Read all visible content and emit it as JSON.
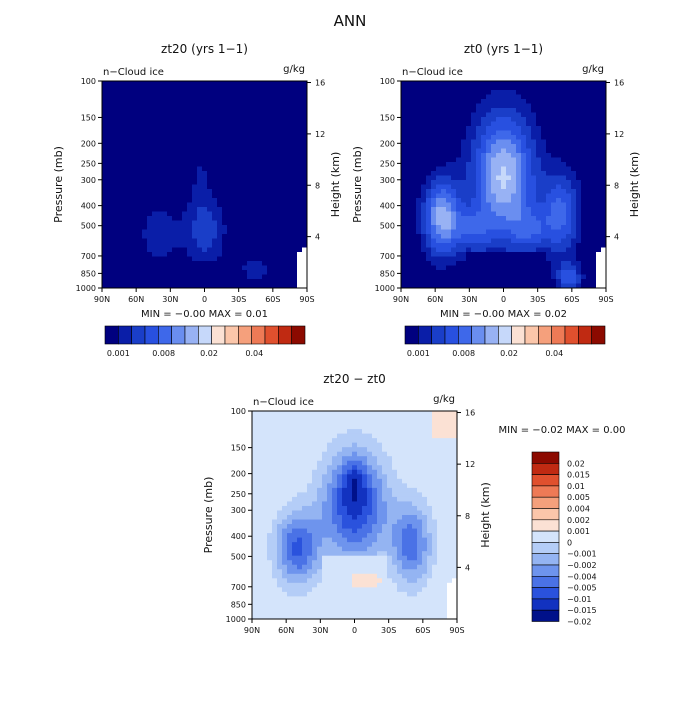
{
  "main_title": "ANN",
  "cbar_ticks": [
    "0.001",
    "0.008",
    "0.02",
    "0.04"
  ],
  "diff_legend_labels": [
    "0.02",
    "0.015",
    "0.01",
    "0.005",
    "0.004",
    "0.002",
    "0.001",
    "0",
    "−0.001",
    "−0.002",
    "−0.004",
    "−0.005",
    "−0.01",
    "−0.015",
    "−0.02"
  ],
  "colors": {
    "seq": [
      "#00007f",
      "#0a1ea8",
      "#1a3ec8",
      "#2850e0",
      "#3e68ea",
      "#6a8ef0",
      "#98b2f4",
      "#c6d8fa",
      "#fbe1d4",
      "#fbc6aa",
      "#f5a07c",
      "#ee7a56",
      "#e0502e",
      "#c02a12",
      "#8c0a00"
    ],
    "diff": [
      "#8c0a00",
      "#c02a12",
      "#e0502e",
      "#ee7a56",
      "#f5a07c",
      "#fbc6aa",
      "#fbe1d4",
      "#d4e4fb",
      "#b4cdf7",
      "#94b4f2",
      "#6e94ed",
      "#4a72e6",
      "#2a52dd",
      "#1232c0",
      "#00118a"
    ]
  },
  "chart_data": [
    {
      "type": "heatmap",
      "title": "zt20 (yrs 1−1)",
      "field_label": "n−Cloud ice",
      "units": "g/kg",
      "xlabel": "",
      "ylabel": "Pressure (mb)",
      "ylabel_right": "Height (km)",
      "x_ticks": [
        "90N",
        "60N",
        "30N",
        "0",
        "30S",
        "60S",
        "90S"
      ],
      "y_ticks": [
        "100",
        "150",
        "200",
        "250",
        "300",
        "400",
        "500",
        "700",
        "850",
        "1000"
      ],
      "y_right_ticks": [
        "16",
        "12",
        "8",
        "4"
      ],
      "stats": "MIN =  −0.00    MAX =   0.01",
      "min": -0.0,
      "max": 0.01,
      "legend": "colorbar-bottom",
      "colorbar_ticks": [
        "0.001",
        "0.008",
        "0.02",
        "0.04"
      ]
    },
    {
      "type": "heatmap",
      "title": "zt0 (yrs 1−1)",
      "field_label": "n−Cloud ice",
      "units": "g/kg",
      "xlabel": "",
      "ylabel": "Pressure (mb)",
      "ylabel_right": "Height (km)",
      "x_ticks": [
        "90N",
        "60N",
        "30N",
        "0",
        "30S",
        "60S",
        "90S"
      ],
      "y_ticks": [
        "100",
        "150",
        "200",
        "250",
        "300",
        "400",
        "500",
        "700",
        "850",
        "1000"
      ],
      "y_right_ticks": [
        "16",
        "12",
        "8",
        "4"
      ],
      "stats": "MIN =  −0.00    MAX =   0.02",
      "min": -0.0,
      "max": 0.02,
      "legend": "colorbar-bottom",
      "colorbar_ticks": [
        "0.001",
        "0.008",
        "0.02",
        "0.04"
      ]
    },
    {
      "type": "heatmap",
      "title": "zt20 − zt0",
      "field_label": "n−Cloud ice",
      "units": "g/kg",
      "xlabel": "",
      "ylabel": "Pressure (mb)",
      "ylabel_right": "Height (km)",
      "x_ticks": [
        "90N",
        "60N",
        "30N",
        "0",
        "30S",
        "60S",
        "90S"
      ],
      "y_ticks": [
        "100",
        "150",
        "200",
        "250",
        "300",
        "400",
        "500",
        "700",
        "850",
        "1000"
      ],
      "y_right_ticks": [
        "16",
        "12",
        "8",
        "4"
      ],
      "stats": "MIN =  −0.02    MAX =    0.00",
      "min": -0.02,
      "max": 0.0,
      "legend": "right",
      "legend_levels": [
        "0.02",
        "0.015",
        "0.01",
        "0.005",
        "0.004",
        "0.002",
        "0.001",
        "0",
        "−0.001",
        "−0.002",
        "−0.004",
        "−0.005",
        "−0.01",
        "−0.015",
        "−0.02"
      ]
    }
  ]
}
